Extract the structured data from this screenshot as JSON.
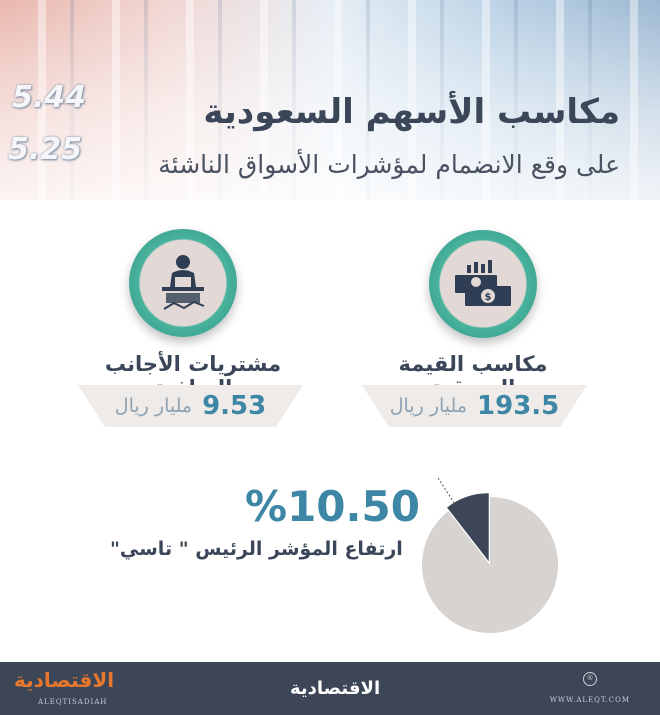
{
  "header": {
    "title": "مكاسب الأسهم السعودية",
    "subtitle": "على وقع الانضمام لمؤشرات الأسواق الناشئة",
    "bg_numbers": [
      "5.44",
      "5.25"
    ]
  },
  "stats": [
    {
      "icon": "money-stack-icon",
      "label": "مكاسب القيمة السوقية",
      "value": "193.5",
      "unit": "مليار ريال"
    },
    {
      "icon": "trader-desk-icon",
      "label": "مشتريات الأجانب الصافية",
      "value": "9.53",
      "unit": "مليار ريال"
    }
  ],
  "index": {
    "value": "%10.50",
    "label": "ارتفاع المؤشر الرئيس \" تاسي\"",
    "percent": 10.5,
    "slice_color": "#3c4656",
    "rest_color": "#d6d3d1"
  },
  "footer": {
    "logo": "الاقتصادية",
    "logo_sub": "ALEQTISADIAH",
    "center": "الاقتصادية",
    "url": "WWW.ALEQT.COM",
    "reg": "®"
  },
  "colors": {
    "accent": "#3e86a6",
    "navy": "#3b4659",
    "teal": "#48b39c",
    "orange": "#e8772e"
  }
}
